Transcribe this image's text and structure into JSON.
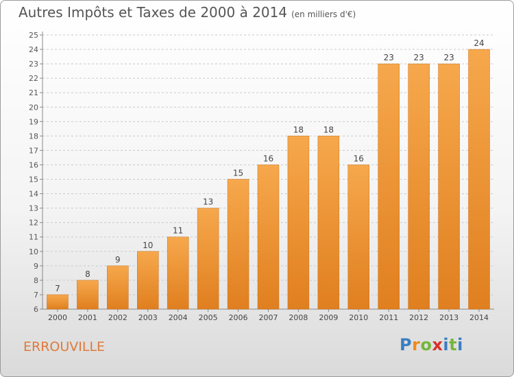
{
  "header": {
    "title": "Autres Impôts et Taxes de 2000 à 2014",
    "subtitle": "(en milliers d'€)"
  },
  "footer": {
    "place": "ERROUVILLE",
    "logo_letters": [
      "P",
      "r",
      "o",
      "x",
      "i",
      "t",
      "i"
    ]
  },
  "colors": {
    "bar_top": "#f6a84c",
    "bar_bottom": "#e07f1f",
    "bar_edge": "#c8701a",
    "place_text": "#e0793a",
    "logo_letters": [
      "#3a7ec2",
      "#f08a1a",
      "#74b63a",
      "#d9302a",
      "#3a7ec2",
      "#74b63a",
      "#3a7ec2"
    ]
  },
  "chart_data": {
    "type": "bar",
    "title": "Autres Impôts et Taxes de 2000 à 2014",
    "subtitle": "(en milliers d'€)",
    "categories": [
      "2000",
      "2001",
      "2002",
      "2003",
      "2004",
      "2005",
      "2006",
      "2007",
      "2008",
      "2009",
      "2010",
      "2011",
      "2012",
      "2013",
      "2014"
    ],
    "values": [
      7,
      8,
      9,
      10,
      11,
      13,
      15,
      16,
      18,
      18,
      16,
      23,
      23,
      23,
      24
    ],
    "ylim": [
      6,
      25
    ],
    "yticks": [
      6,
      7,
      8,
      9,
      10,
      11,
      12,
      13,
      14,
      15,
      16,
      17,
      18,
      19,
      20,
      21,
      22,
      23,
      24,
      25
    ],
    "grid": "horizontal dashed",
    "data_labels": true
  }
}
